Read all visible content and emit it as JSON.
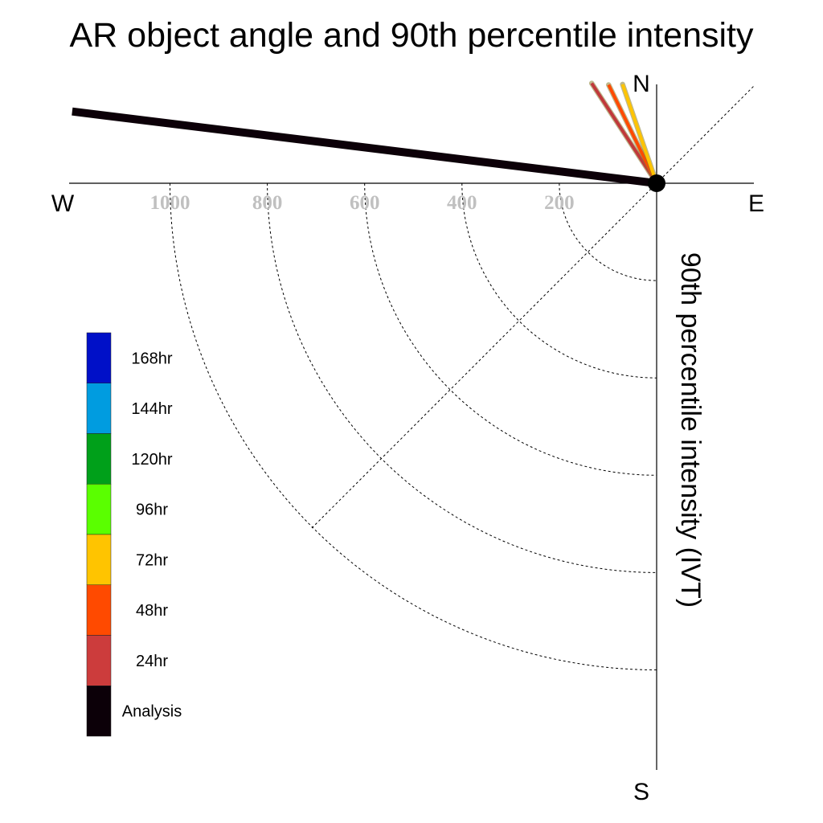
{
  "chart_data": {
    "type": "polar-vector",
    "title": "AR object angle and 90th percentile intensity",
    "ylabel": "90th percentile intensity (IVT)",
    "compass": {
      "north": "N",
      "south": "S",
      "east": "E",
      "west": "W"
    },
    "radial_ticks": [
      {
        "value": 1000,
        "label": "1000"
      },
      {
        "value": 800,
        "label": "800"
      },
      {
        "value": 600,
        "label": "600"
      },
      {
        "value": 400,
        "label": "400"
      },
      {
        "value": 200,
        "label": "200"
      }
    ],
    "rmax": 1200,
    "grid": true,
    "legend_position": "left",
    "legend": [
      {
        "label": "168hr",
        "color": "#0010c8"
      },
      {
        "label": "144hr",
        "color": "#009ce0"
      },
      {
        "label": "120hr",
        "color": "#00a01a"
      },
      {
        "label": "96hr",
        "color": "#5aff00"
      },
      {
        "label": "72hr",
        "color": "#ffc400"
      },
      {
        "label": "48hr",
        "color": "#ff4a00"
      },
      {
        "label": "24hr",
        "color": "#cc3c3c"
      },
      {
        "label": "Analysis",
        "color": "#0c0008"
      }
    ],
    "vectors": [
      {
        "lead": "24hr",
        "bearing_deg": 327,
        "intensity": 245,
        "color": "#c0393b"
      },
      {
        "lead": "48hr",
        "bearing_deg": 334,
        "intensity": 225,
        "color": "#ff4a00"
      },
      {
        "lead": "72hr",
        "bearing_deg": 341,
        "intensity": 215,
        "color": "#ffc400"
      },
      {
        "lead": "Analysis",
        "bearing_deg": 277,
        "intensity": 1210,
        "color": "#0c0008"
      }
    ]
  }
}
